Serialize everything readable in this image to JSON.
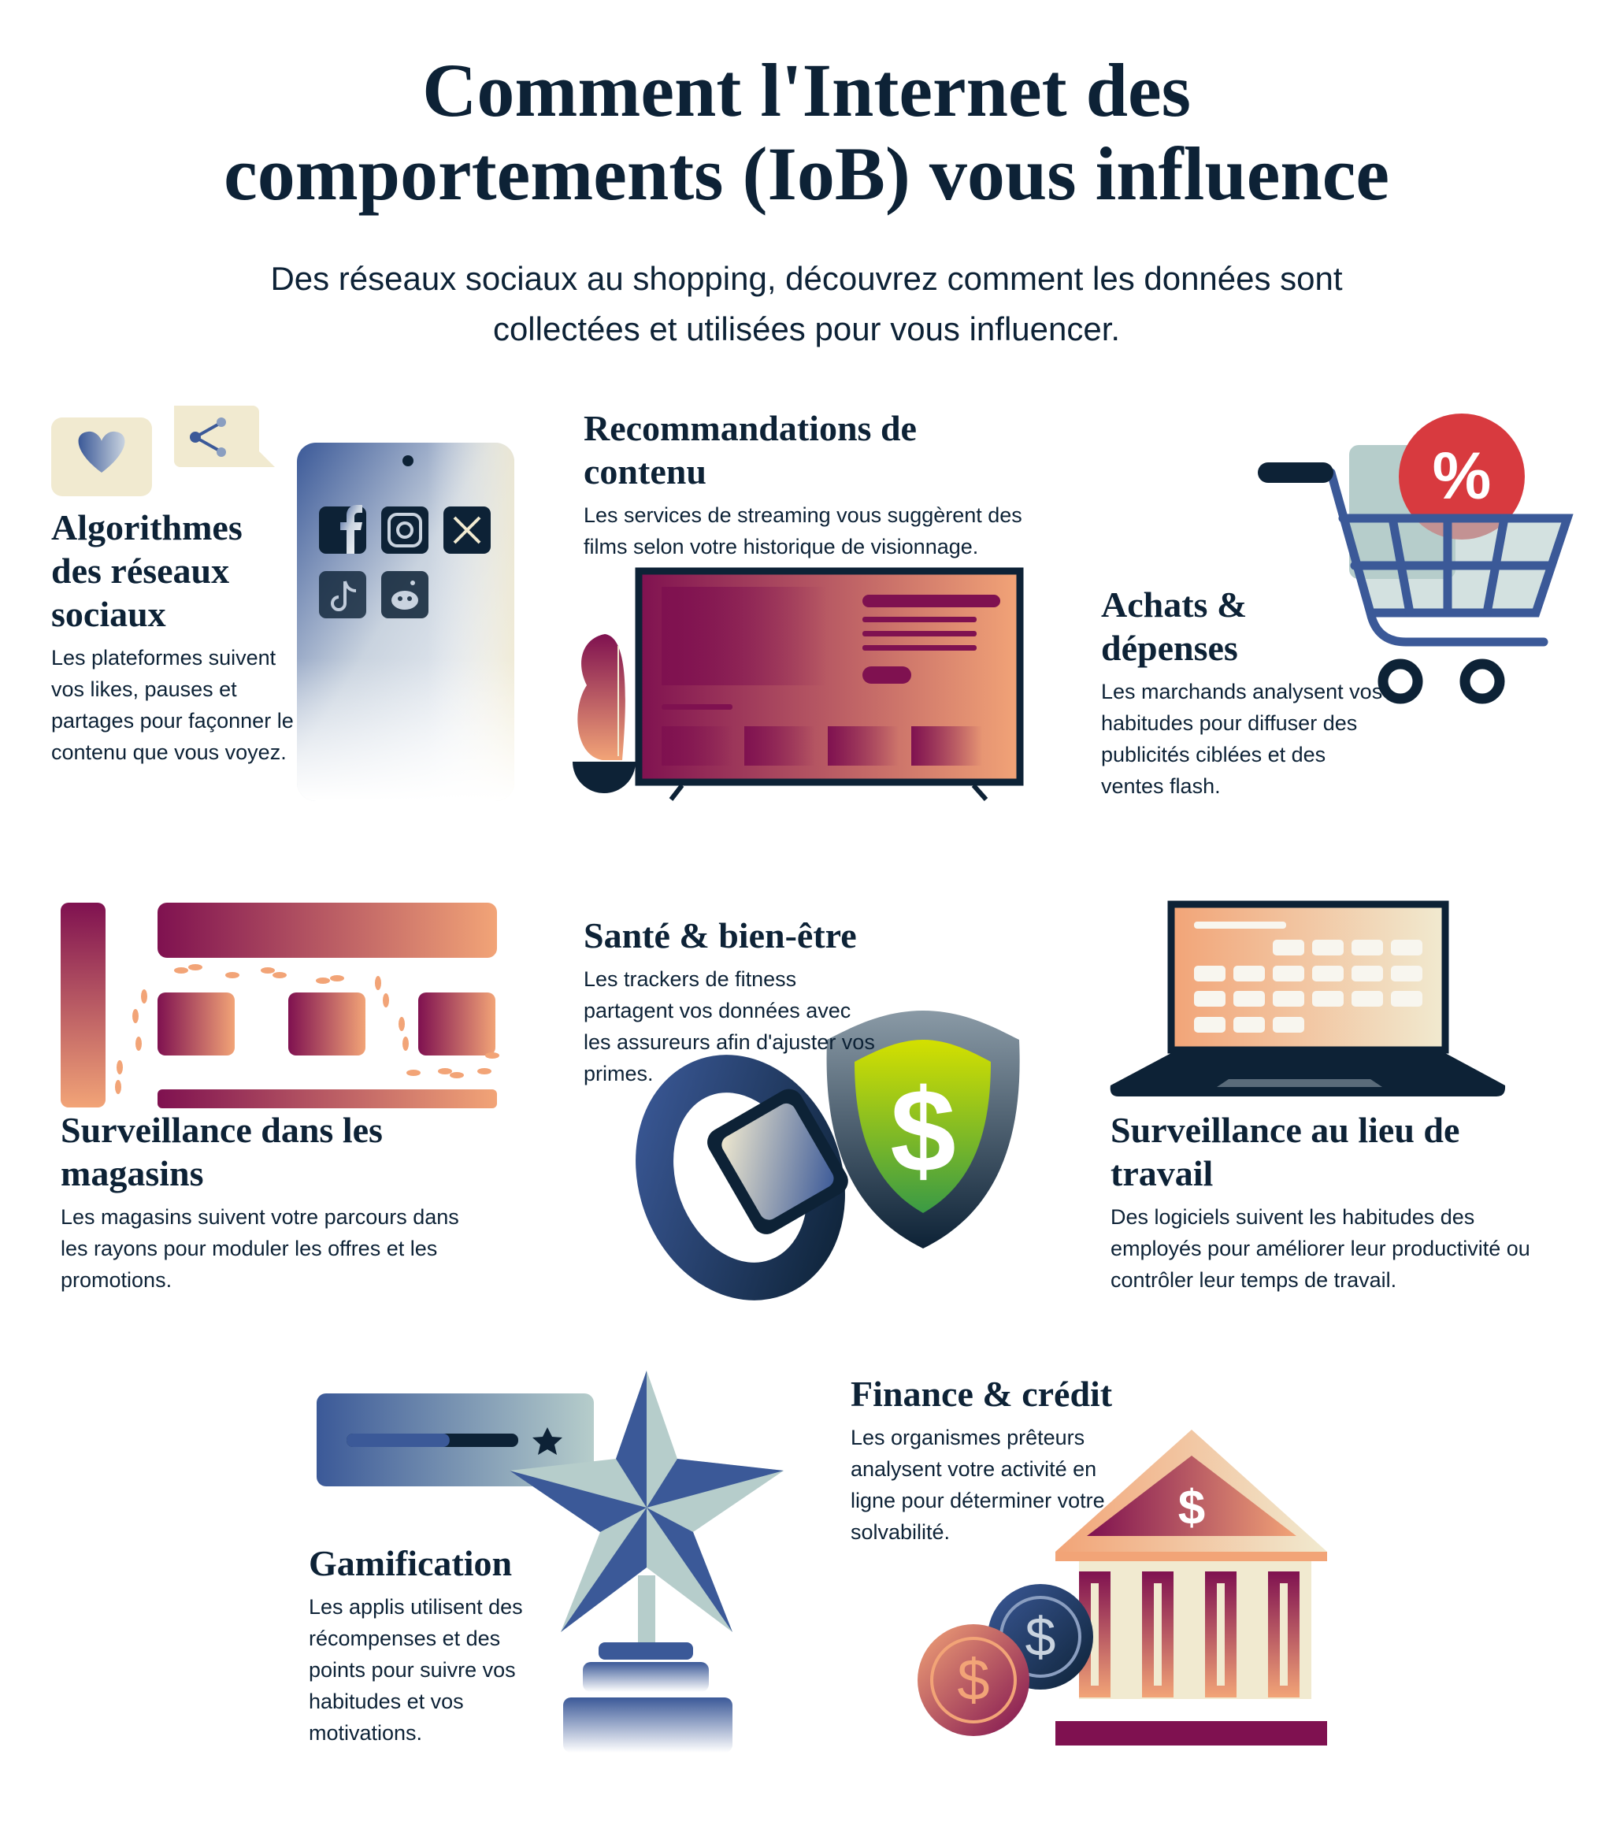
{
  "header": {
    "title_line1": "Comment l'Internet des",
    "title_line2": "comportements (IoB) vous influence",
    "subtitle_line1": "Des réseaux sociaux au shopping, découvrez comment les données sont",
    "subtitle_line2": "collectées et utilisées pour vous influencer."
  },
  "sections": [
    {
      "title": "Algorithmes des réseaux sociaux",
      "text": "Les plateformes suivent vos likes, pauses et partages pour façonner le contenu que vous voyez.",
      "icons": [
        "heart-icon",
        "share-icon",
        "facebook-icon",
        "instagram-icon",
        "x-icon",
        "tiktok-icon",
        "reddit-icon"
      ]
    },
    {
      "title": "Recommandations de contenu",
      "text": "Les services de streaming vous suggèrent des films selon votre historique de visionnage.",
      "icons": [
        "tv-icon",
        "plant-icon"
      ]
    },
    {
      "title": "Achats & dépenses",
      "text": "Les marchands analysent vos habitudes pour diffuser des publicités ciblées et des ventes flash.",
      "icons": [
        "shopping-cart-icon"
      ],
      "badge": "%"
    },
    {
      "title": "Surveillance dans les magasins",
      "text": "Les magasins suivent votre parcours dans les rayons pour moduler les offres et les promotions.",
      "icons": [
        "store-layout-icon",
        "footsteps-icon"
      ]
    },
    {
      "title": "Santé & bien-être",
      "text": "Les trackers de fitness partagent vos données avec les assureurs afin d'ajuster vos primes.",
      "icons": [
        "smartwatch-icon",
        "shield-dollar-icon"
      ],
      "symbol": "$"
    },
    {
      "title": "Surveillance au lieu de travail",
      "text": "Des logiciels suivent les habitudes des employés pour améliorer leur productivité ou contrôler leur temps de travail.",
      "icons": [
        "laptop-calendar-icon"
      ]
    },
    {
      "title": "Gamification",
      "text": "Les applis utilisent des récompenses et des points pour suivre vos habitudes et vos motivations.",
      "icons": [
        "progress-bar-icon",
        "star-trophy-icon"
      ],
      "progress": 0.6
    },
    {
      "title": "Finance & crédit",
      "text": "Les organismes prêteurs analysent votre activité en ligne pour déterminer votre solvabilité.",
      "icons": [
        "bank-icon",
        "coin-icon"
      ],
      "symbol": "$"
    }
  ],
  "colors": {
    "navy": "#0d2236",
    "blue": "#3b5998",
    "plum": "#7f1150",
    "peach": "#f2a477",
    "cream": "#f1ead0",
    "sage": "#b6cdcb",
    "red": "#d83a3f",
    "green": "#6db33f"
  }
}
